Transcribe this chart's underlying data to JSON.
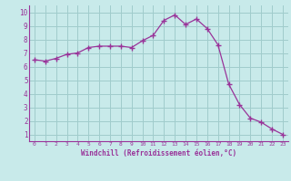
{
  "x": [
    0,
    1,
    2,
    3,
    4,
    5,
    6,
    7,
    8,
    9,
    10,
    11,
    12,
    13,
    14,
    15,
    16,
    17,
    18,
    19,
    20,
    21,
    22,
    23
  ],
  "y": [
    6.5,
    6.4,
    6.6,
    6.9,
    7.0,
    7.4,
    7.5,
    7.5,
    7.5,
    7.4,
    7.9,
    8.3,
    9.4,
    9.8,
    9.1,
    9.5,
    8.8,
    7.6,
    4.7,
    3.2,
    2.2,
    1.9,
    1.4,
    1.0
  ],
  "line_color": "#993399",
  "marker_color": "#993399",
  "bg_color": "#c8eaea",
  "grid_color": "#a0cccc",
  "xlabel": "Windchill (Refroidissement éolien,°C)",
  "xlabel_color": "#993399",
  "tick_color": "#993399",
  "axis_color": "#993399",
  "ylim": [
    0.5,
    10.5
  ],
  "xlim": [
    -0.5,
    23.5
  ],
  "yticks": [
    1,
    2,
    3,
    4,
    5,
    6,
    7,
    8,
    9,
    10
  ],
  "xticks": [
    0,
    1,
    2,
    3,
    4,
    5,
    6,
    7,
    8,
    9,
    10,
    11,
    12,
    13,
    14,
    15,
    16,
    17,
    18,
    19,
    20,
    21,
    22,
    23
  ]
}
